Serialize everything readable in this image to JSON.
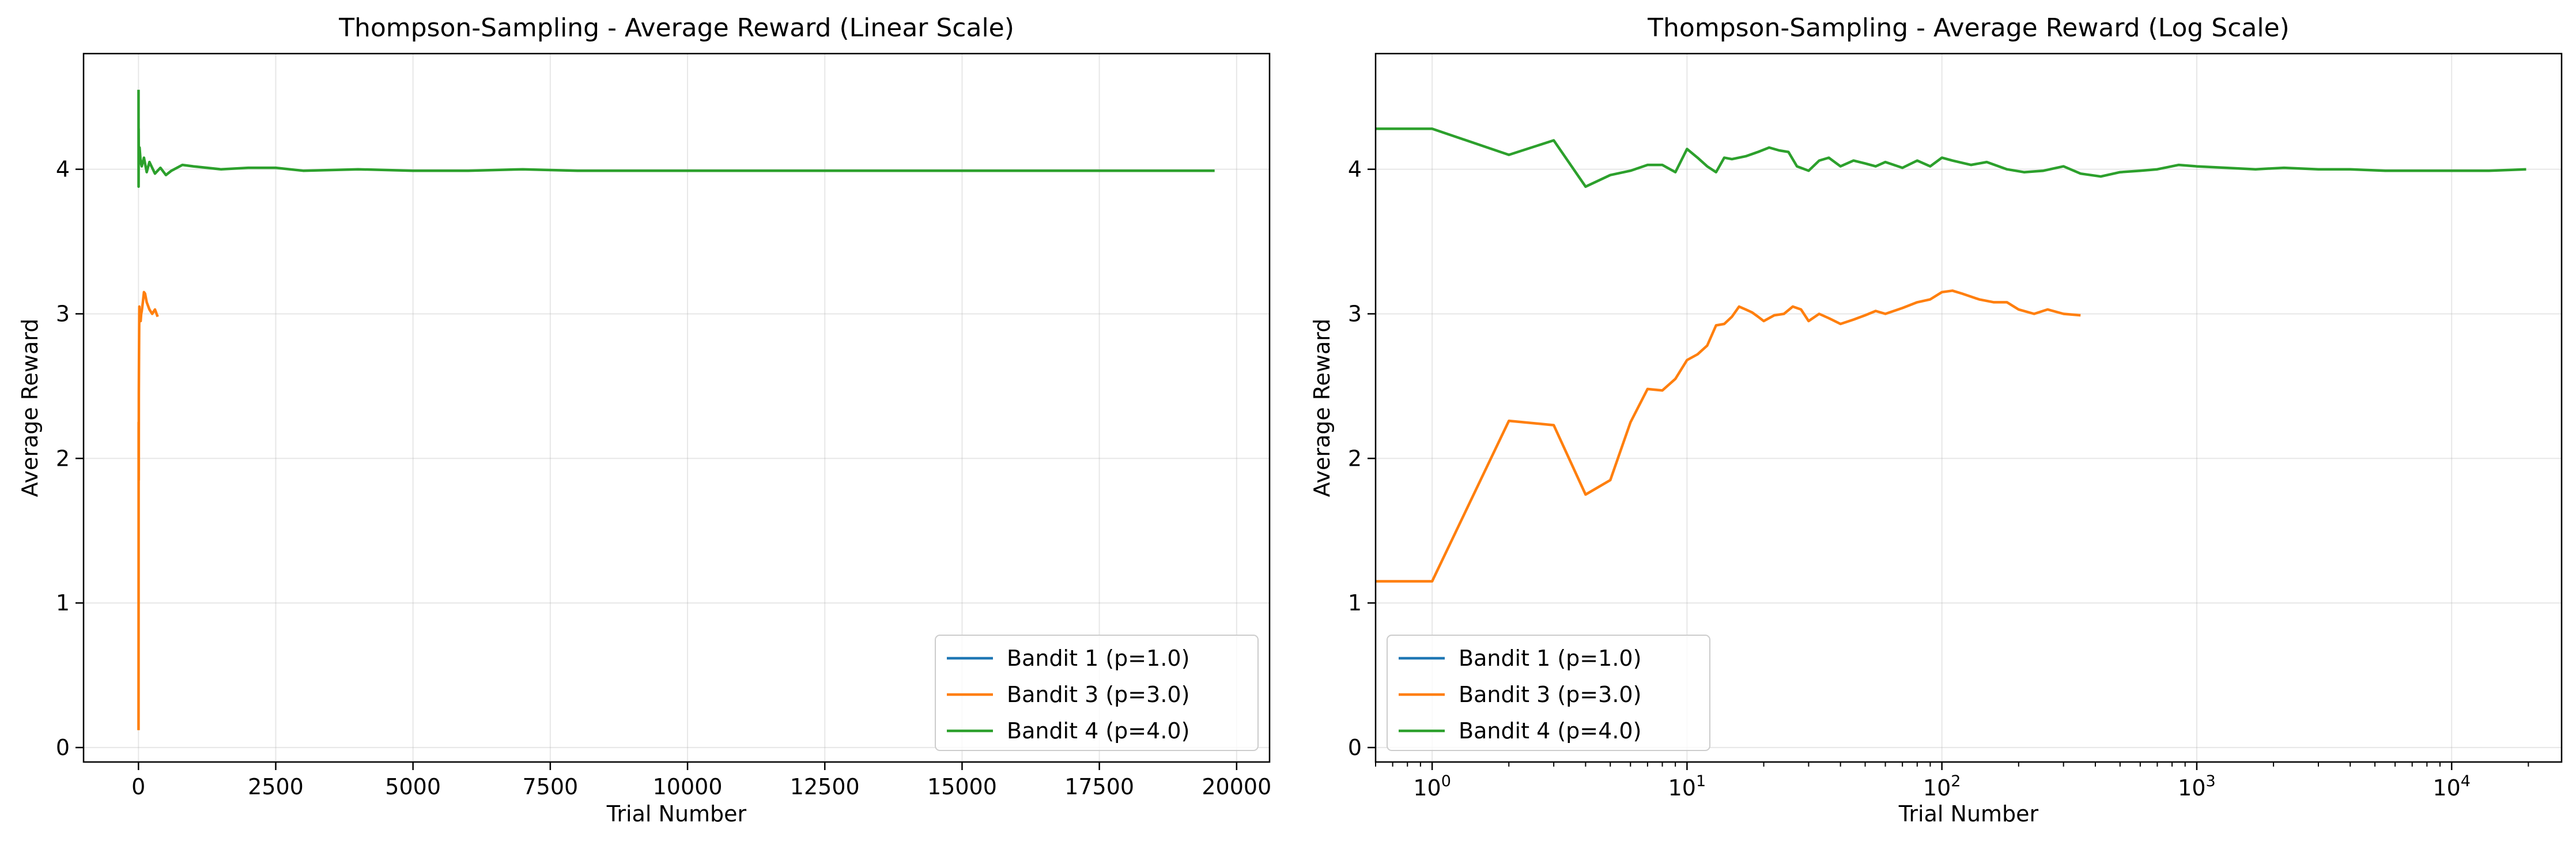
{
  "chart_data": [
    {
      "type": "line",
      "title": "Thompson-Sampling - Average Reward (Linear Scale)",
      "xlabel": "Trial Number",
      "ylabel": "Average Reward",
      "xscale": "linear",
      "xlim": [
        -1000,
        20600
      ],
      "ylim": [
        -0.1,
        4.8
      ],
      "xticks": [
        0,
        2500,
        5000,
        7500,
        10000,
        12500,
        15000,
        17500,
        20000
      ],
      "xtick_labels": [
        "0",
        "2500",
        "5000",
        "7500",
        "10000",
        "12500",
        "15000",
        "17500",
        "20000"
      ],
      "yticks": [
        0,
        1,
        2,
        3,
        4
      ],
      "ytick_labels": [
        "0",
        "1",
        "2",
        "3",
        "4"
      ],
      "grid": true,
      "legend_position": "lower-right",
      "series": [
        {
          "name": "Bandit 1 (p=1.0)",
          "color": "#1f77b4",
          "x": [],
          "y": []
        },
        {
          "name": "Bandit 3 (p=3.0)",
          "color": "#ff7f0e",
          "x": [
            1,
            2,
            3,
            4,
            5,
            7,
            10,
            13,
            16,
            20,
            25,
            30,
            40,
            50,
            60,
            80,
            100,
            120,
            150,
            200,
            250,
            300,
            350
          ],
          "y": [
            0.12,
            1.15,
            2.25,
            2.23,
            1.85,
            2.45,
            2.7,
            2.9,
            3.05,
            2.95,
            3.02,
            2.98,
            2.95,
            3.0,
            3.02,
            3.08,
            3.15,
            3.14,
            3.08,
            3.03,
            3.0,
            3.03,
            2.98
          ]
        },
        {
          "name": "Bandit 4 (p=4.0)",
          "color": "#2ca02c",
          "x": [
            1,
            2,
            3,
            4,
            6,
            10,
            20,
            40,
            60,
            100,
            150,
            200,
            300,
            400,
            500,
            600,
            800,
            1000,
            1500,
            2000,
            2500,
            3000,
            4000,
            5000,
            6000,
            7000,
            8000,
            9000,
            10000,
            12000,
            14000,
            16000,
            18000,
            19600
          ],
          "y": [
            4.55,
            3.88,
            4.28,
            4.2,
            4.1,
            4.14,
            4.15,
            4.05,
            4.02,
            4.08,
            3.98,
            4.05,
            3.97,
            4.01,
            3.96,
            3.99,
            4.03,
            4.02,
            4.0,
            4.01,
            4.01,
            3.99,
            4.0,
            3.99,
            3.99,
            4.0,
            3.99,
            3.99,
            3.99,
            3.99,
            3.99,
            3.99,
            3.99,
            3.99
          ]
        }
      ]
    },
    {
      "type": "line",
      "title": "Thompson-Sampling - Average Reward (Log Scale)",
      "xlabel": "Trial Number",
      "ylabel": "Average Reward",
      "xscale": "log",
      "xlim": [
        0.6,
        27000
      ],
      "ylim": [
        -0.1,
        4.8
      ],
      "xticks": [
        1,
        10,
        100,
        1000,
        10000
      ],
      "xtick_labels": [
        [
          "10",
          "0"
        ],
        [
          "10",
          "1"
        ],
        [
          "10",
          "2"
        ],
        [
          "10",
          "3"
        ],
        [
          "10",
          "4"
        ]
      ],
      "yticks": [
        0,
        1,
        2,
        3,
        4
      ],
      "ytick_labels": [
        "0",
        "1",
        "2",
        "3",
        "4"
      ],
      "grid": true,
      "legend_position": "lower-left",
      "series": [
        {
          "name": "Bandit 1 (p=1.0)",
          "color": "#1f77b4",
          "x": [],
          "y": []
        },
        {
          "name": "Bandit 3 (p=3.0)",
          "color": "#ff7f0e",
          "x": [
            0.6,
            1,
            2,
            3,
            4,
            5,
            6,
            7,
            8,
            9,
            10,
            11,
            12,
            13,
            14,
            15,
            16,
            17,
            18,
            19,
            20,
            22,
            24,
            26,
            28,
            30,
            33,
            36,
            40,
            45,
            50,
            55,
            60,
            70,
            80,
            90,
            100,
            110,
            120,
            140,
            160,
            180,
            200,
            230,
            260,
            300,
            350
          ],
          "y": [
            1.15,
            1.15,
            2.26,
            2.23,
            1.75,
            1.85,
            2.25,
            2.48,
            2.47,
            2.55,
            2.68,
            2.72,
            2.78,
            2.92,
            2.93,
            2.98,
            3.05,
            3.03,
            3.01,
            2.98,
            2.95,
            2.99,
            3.0,
            3.05,
            3.03,
            2.95,
            3.0,
            2.97,
            2.93,
            2.96,
            2.99,
            3.02,
            3.0,
            3.04,
            3.08,
            3.1,
            3.15,
            3.16,
            3.14,
            3.1,
            3.08,
            3.08,
            3.03,
            3.0,
            3.03,
            3.0,
            2.99
          ]
        },
        {
          "name": "Bandit 4 (p=4.0)",
          "color": "#2ca02c",
          "x": [
            0.6,
            1,
            2,
            3,
            4,
            5,
            6,
            7,
            8,
            9,
            10,
            11,
            12,
            13,
            14,
            15,
            17,
            19,
            21,
            23,
            25,
            27,
            30,
            33,
            36,
            40,
            45,
            50,
            55,
            60,
            70,
            80,
            90,
            100,
            110,
            130,
            150,
            180,
            210,
            250,
            300,
            350,
            420,
            500,
            600,
            700,
            850,
            1000,
            1300,
            1700,
            2200,
            3000,
            4000,
            5500,
            7500,
            10000,
            14000,
            19600
          ],
          "y": [
            4.28,
            4.28,
            4.1,
            4.2,
            3.88,
            3.96,
            3.99,
            4.03,
            4.03,
            3.98,
            4.14,
            4.08,
            4.02,
            3.98,
            4.08,
            4.07,
            4.09,
            4.12,
            4.15,
            4.13,
            4.12,
            4.02,
            3.99,
            4.06,
            4.08,
            4.02,
            4.06,
            4.04,
            4.02,
            4.05,
            4.01,
            4.06,
            4.02,
            4.08,
            4.06,
            4.03,
            4.05,
            4.0,
            3.98,
            3.99,
            4.02,
            3.97,
            3.95,
            3.98,
            3.99,
            4.0,
            4.03,
            4.02,
            4.01,
            4.0,
            4.01,
            4.0,
            4.0,
            3.99,
            3.99,
            3.99,
            3.99,
            4.0
          ]
        }
      ]
    }
  ]
}
